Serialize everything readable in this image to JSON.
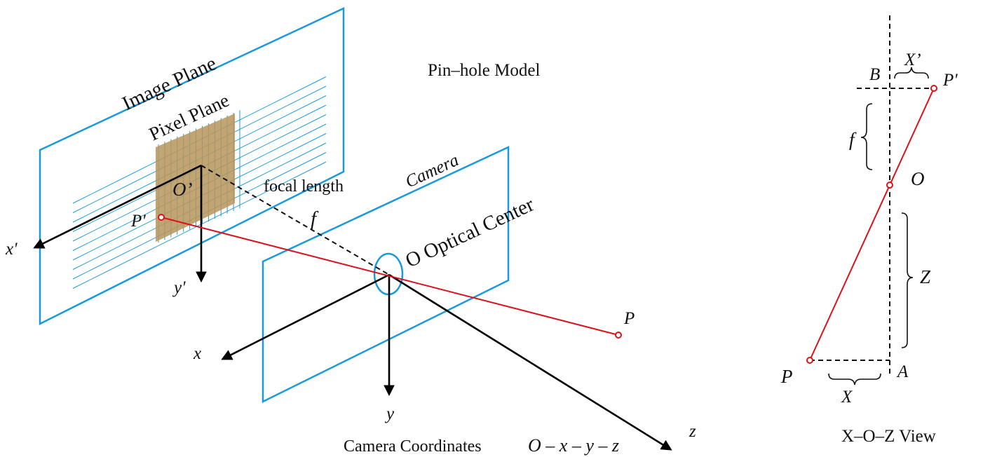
{
  "main_view": {
    "title": "Pin–hole Model",
    "image_plane_label": "Image Plane",
    "pixel_plane_label": "Pixel Plane",
    "camera_label": "Camera",
    "focal_length_label": "focal length",
    "focal_symbol": "f",
    "optical_center_label": "O Optical Center",
    "image_origin_label": "O’",
    "image_point_label": "P'",
    "object_point_label": "P",
    "image_axis_x_label": "x'",
    "image_axis_y_label": "y'",
    "camera_axis_x_label": "x",
    "camera_axis_y_label": "y",
    "camera_axis_z_label": "z",
    "caption_prefix": "Camera Coordinates",
    "caption_formula": "O – x – y – z"
  },
  "side_view": {
    "title": "X–O–Z View",
    "point_b_label": "B",
    "image_point_label": "P'",
    "image_offset_label": "X’",
    "focal_label": "f",
    "center_label": "O",
    "depth_label": "Z",
    "object_point_label": "P",
    "point_a_label": "A",
    "object_offset_label": "X"
  },
  "colors": {
    "plane_outline": "#1a9ad9",
    "ray": "#d9121b",
    "axis": "#000000",
    "pixel_plane_fill": "#b8955a"
  }
}
